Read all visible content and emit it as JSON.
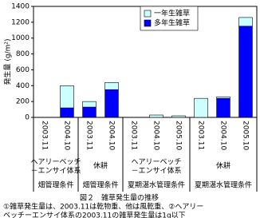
{
  "chart_data": {
    "type": "bar",
    "stacked": true,
    "ylabel": "発生量 (g/m²)",
    "categories": [
      "2003.11",
      "2004.10",
      "2003.11",
      "2004.10",
      "2003.11",
      "2004.10",
      "2005.10",
      "2003.11",
      "2004.10",
      "2005.10"
    ],
    "series": [
      {
        "name": "一年生雑草",
        "color": "#ccffff",
        "values": [
          0,
          280,
          70,
          90,
          0,
          30,
          20,
          240,
          20,
          110
        ]
      },
      {
        "name": "多年生雑草",
        "color": "#0000ff",
        "values": [
          0,
          120,
          130,
          350,
          0,
          0,
          0,
          0,
          240,
          1150
        ]
      }
    ],
    "groups": [
      {
        "label": [
          "ヘアリーベッチ",
          "－エンサイ体系"
        ],
        "condition": "畑管理条件",
        "span": 2
      },
      {
        "label": [
          "休耕"
        ],
        "condition": "畑管理条件",
        "span": 2
      },
      {
        "label": [
          "ヘアリーベッチ",
          "－エンサイ体系"
        ],
        "condition": "夏期湛水管理条件",
        "span": 3
      },
      {
        "label": [
          "休耕"
        ],
        "condition": "夏期湛水管理条件",
        "span": 3
      }
    ],
    "ylim": [
      0,
      1400
    ],
    "yticks": [
      0,
      200,
      400,
      600,
      800,
      1000,
      1200,
      1400
    ],
    "grid": false,
    "legend": "top-center",
    "title": "図２　雑草発生量の推移",
    "notes": [
      "①雑草発生量は、2003.11は乾物重、他は風乾重、②ヘアリー",
      "ベッチーエンサイ体系の2003.11の雑草発生量は1g以下"
    ]
  }
}
